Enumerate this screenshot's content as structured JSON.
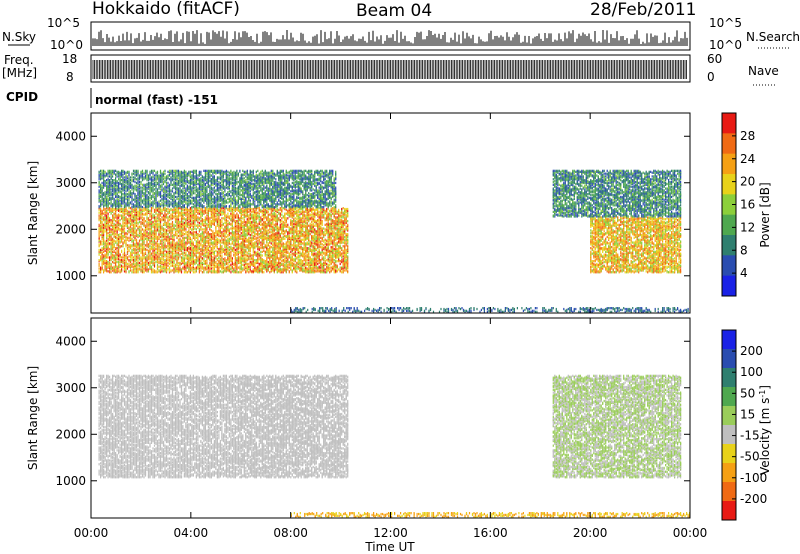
{
  "header": {
    "station": "Hokkaido (fitACF)",
    "beam": "Beam 04",
    "date": "28/Feb/2011"
  },
  "top_panels": {
    "nsky_label": "N.Sky",
    "nsearch_label": "N.Search",
    "freq_label": "Freq.",
    "freq_unit": "[MHz]",
    "nave_label": "Nave",
    "cpid_label": "CPID",
    "cpid_value": "normal (fast) -151",
    "nsky_ticks": [
      "10^5",
      "10^0"
    ],
    "nsearch_ticks": [
      "10^5",
      "10^0"
    ],
    "freq_ticks": [
      "18",
      "8"
    ],
    "nave_ticks": [
      "60",
      "0"
    ]
  },
  "x_axis": {
    "label": "Time UT",
    "ticks": [
      "00:00",
      "04:00",
      "08:00",
      "12:00",
      "16:00",
      "20:00",
      "00:00"
    ]
  },
  "colors": {
    "power": [
      "#1a22e6",
      "#2a4db0",
      "#2f7f6f",
      "#4fa84f",
      "#8ccf3a",
      "#e8d21a",
      "#f5a014",
      "#f06a14",
      "#e81a14"
    ],
    "velocity": [
      "#e81a14",
      "#f06a14",
      "#f5a014",
      "#e8d21a",
      "#bfbfbf",
      "#9acd5a",
      "#4fa84f",
      "#2f7f6f",
      "#2a4db0",
      "#1a22e6"
    ]
  },
  "chart_data": [
    {
      "type": "heatmap",
      "title": "",
      "xlabel": "Time UT",
      "ylabel": "Slant Range [km]",
      "xlim": [
        "00:00",
        "24:00"
      ],
      "ylim": [
        200,
        4500
      ],
      "yticks": [
        "1000",
        "2000",
        "3000",
        "4000"
      ],
      "colorbar": {
        "label": "Power [dB]",
        "ticks": [
          "28",
          "24",
          "20",
          "16",
          "12",
          "8",
          "4"
        ],
        "range": [
          0,
          30
        ]
      },
      "regions": [
        {
          "name": "early-band",
          "hours": [
            0.3,
            10.3
          ],
          "range_km": [
            1100,
            2500
          ],
          "power_db": [
            14,
            28
          ]
        },
        {
          "name": "early-upper",
          "hours": [
            0.3,
            9.8
          ],
          "range_km": [
            2500,
            3300
          ],
          "power_db": [
            4,
            14
          ]
        },
        {
          "name": "late-band",
          "hours": [
            20.0,
            23.6
          ],
          "range_km": [
            1100,
            2300
          ],
          "power_db": [
            14,
            26
          ]
        },
        {
          "name": "late-upper",
          "hours": [
            18.5,
            23.6
          ],
          "range_km": [
            2300,
            3300
          ],
          "power_db": [
            4,
            14
          ]
        },
        {
          "name": "ground-near",
          "hours": [
            8.0,
            24.0
          ],
          "range_km": [
            250,
            350
          ],
          "power_db": [
            4,
            10
          ]
        }
      ]
    },
    {
      "type": "heatmap",
      "title": "",
      "xlabel": "Time UT",
      "ylabel": "Slant Range [km]",
      "xlim": [
        "00:00",
        "24:00"
      ],
      "ylim": [
        200,
        4500
      ],
      "yticks": [
        "1000",
        "2000",
        "3000",
        "4000"
      ],
      "colorbar": {
        "label": "Velocity [m s^-1]",
        "ticks": [
          "200",
          "100",
          "50",
          "15",
          "-15",
          "-50",
          "-100",
          "-200"
        ],
        "range": [
          -250,
          250
        ]
      },
      "regions": [
        {
          "name": "early-band",
          "hours": [
            0.3,
            10.3
          ],
          "range_km": [
            1100,
            3300
          ],
          "velocity_ms": [
            -15,
            15
          ]
        },
        {
          "name": "late-band",
          "hours": [
            18.5,
            23.6
          ],
          "range_km": [
            1100,
            3300
          ],
          "velocity_ms": [
            -15,
            50
          ]
        },
        {
          "name": "ground-near",
          "hours": [
            8.0,
            24.0
          ],
          "range_km": [
            250,
            350
          ],
          "velocity_ms": [
            -100,
            -15
          ]
        }
      ]
    }
  ]
}
